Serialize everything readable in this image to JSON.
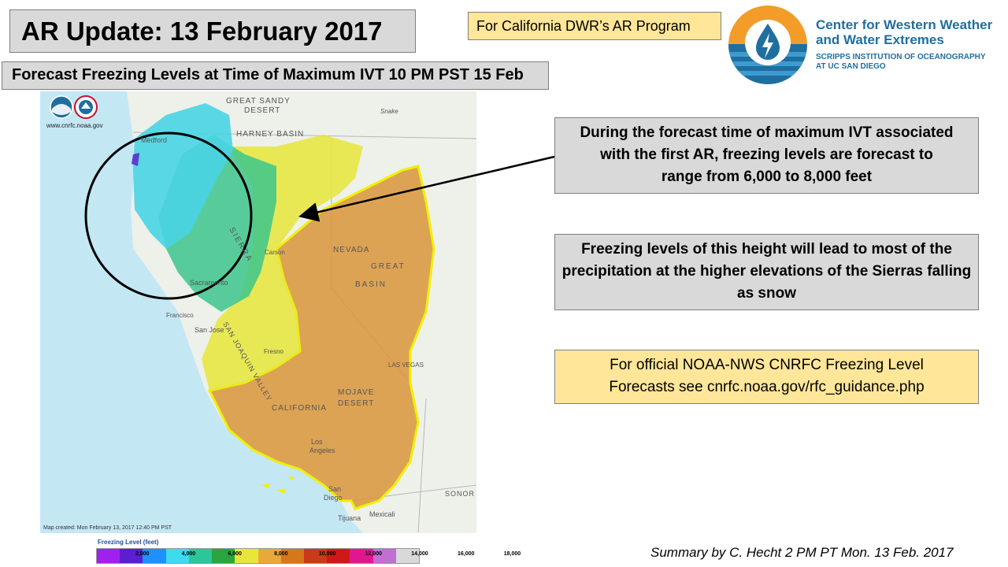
{
  "header": {
    "title": "AR Update: 13 February 2017",
    "subtitle": "Forecast Freezing Levels at Time of Maximum IVT 10 PM PST 15 Feb",
    "program_tag": "For California DWR’s AR Program"
  },
  "logo": {
    "line1": "Center for Western Weather",
    "line2": "and Water Extremes",
    "line3": "SCRIPPS INSTITUTION OF OCEANOGRAPHY",
    "line4": "AT UC SAN DIEGO",
    "icon": "water-drop-icon"
  },
  "notes": {
    "note1": "During the forecast time of maximum IVT associated with the first AR, freezing levels are forecast to range from 6,000 to 8,000 feet",
    "note2": "Freezing levels of this height will lead to most of the precipitation at the higher elevations of the Sierras falling as snow",
    "note3_line1": "For official NOAA-NWS CNRFC Freezing Level",
    "note3_line2": "Forecasts see cnrfc.noaa.gov/rfc_guidance.php"
  },
  "map": {
    "credit_url": "www.cnrfc.noaa.gov",
    "created": "Map created: Mon February 13, 2017 12:40 PM PST",
    "labels": {
      "great_sandy": "GREAT SANDY",
      "desert": "DESERT",
      "harney": "HARNEY BASIN",
      "medford": "Medford",
      "sacramento": "Sacramento",
      "sierra": "SIERRA",
      "nevada": "NEVADA",
      "great": "GREAT",
      "basin": "BASIN",
      "carson": "Carson",
      "san_jose": "San Jose",
      "fresno": "Fresno",
      "las_vegas": "LAS VEGAS",
      "mojave": "MOJAVE",
      "mojave_desert": "DESERT",
      "california": "CALIFORNIA",
      "los_angeles1": "Los",
      "los_angeles2": "Angeles",
      "san_diego1": "San",
      "san_diego2": "Diego",
      "tijuana": "Tijuana",
      "mexicali": "Mexicali",
      "sonora": "SONOR",
      "san_joaquin": "SAN JOAQUIN VALLEY",
      "snake": "Snake",
      "francisco": "Francisco"
    },
    "colors": {
      "ocean": "#c4e7f4",
      "land": "#eef0ea",
      "cyan": "#49d4e4",
      "green": "#3cc58c",
      "yellow": "#e5e63a",
      "orange": "#d9953a",
      "circle": "#000000"
    }
  },
  "legend": {
    "title": "Freezing Level (feet)",
    "ticks": [
      "2,000",
      "4,000",
      "6,000",
      "8,000",
      "10,000",
      "12,000",
      "14,000",
      "16,000",
      "18,000"
    ],
    "colors": [
      "#a020f0",
      "#5a1fd0",
      "#1e90ff",
      "#3fd9f0",
      "#2dc59a",
      "#2aa640",
      "#e8e63a",
      "#e8a93a",
      "#d5781a",
      "#c83a1a",
      "#d01818",
      "#e01890",
      "#c070d0",
      "#d9d9d9"
    ]
  },
  "footer": {
    "summary": "Summary by C. Hecht 2 PM PT Mon. 13 Feb. 2017"
  }
}
